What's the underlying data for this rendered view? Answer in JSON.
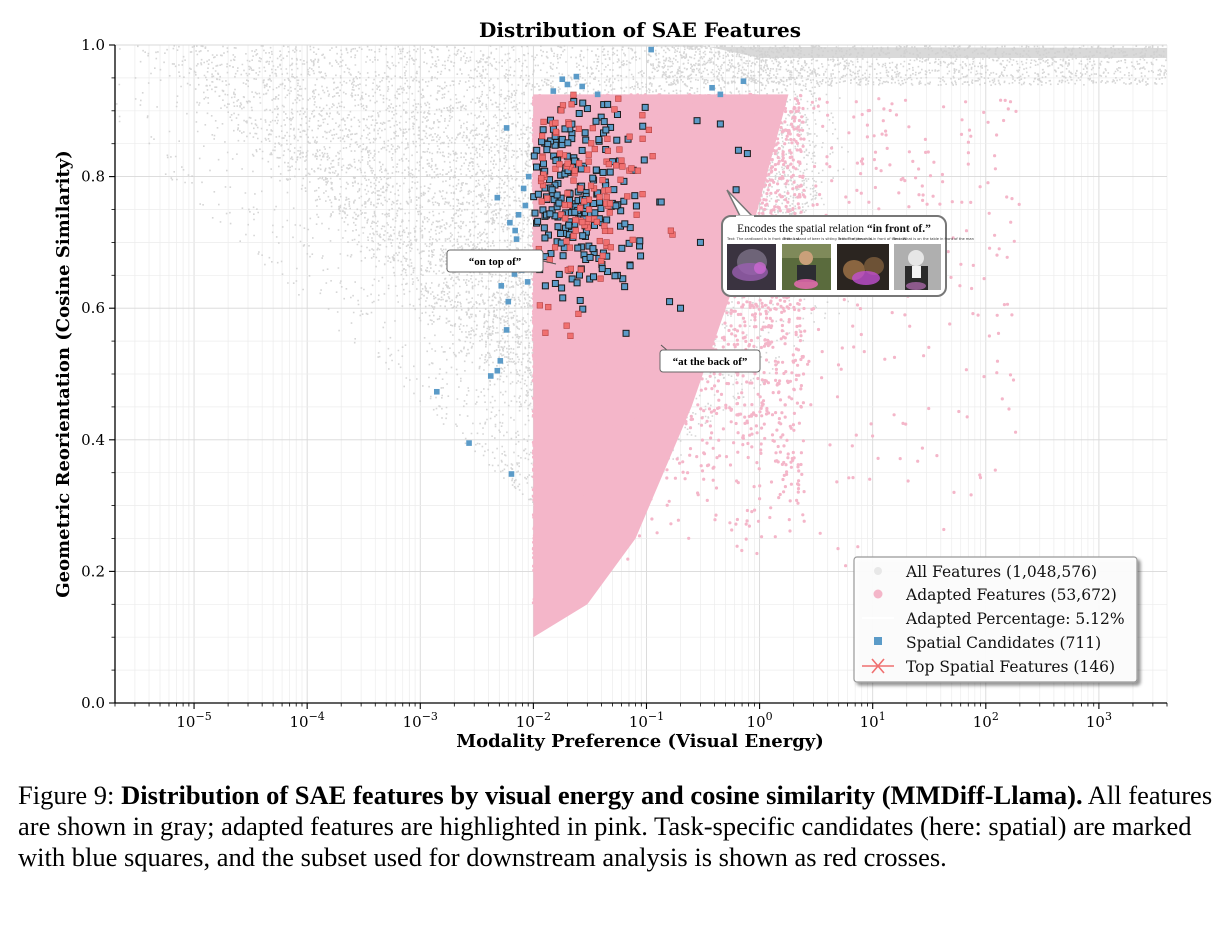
{
  "chart_data": {
    "type": "scatter",
    "title": "Distribution of SAE Features",
    "xlabel": "Modality Preference (Visual Energy)",
    "ylabel": "Geometric Reorientation (Cosine Similarity)",
    "x_scale": "log",
    "xlim": [
      2e-06,
      4000
    ],
    "ylim": [
      0.0,
      1.0
    ],
    "x_ticks": [
      {
        "value": 1e-05,
        "base": "10",
        "exp": "−5"
      },
      {
        "value": 0.0001,
        "base": "10",
        "exp": "−4"
      },
      {
        "value": 0.001,
        "base": "10",
        "exp": "−3"
      },
      {
        "value": 0.01,
        "base": "10",
        "exp": "−2"
      },
      {
        "value": 0.1,
        "base": "10",
        "exp": "−1"
      },
      {
        "value": 1,
        "base": "10",
        "exp": "0"
      },
      {
        "value": 10,
        "base": "10",
        "exp": "1"
      },
      {
        "value": 100,
        "base": "10",
        "exp": "2"
      },
      {
        "value": 1000,
        "base": "10",
        "exp": "3"
      }
    ],
    "y_ticks": [
      {
        "value": 0.0,
        "label": "0.0"
      },
      {
        "value": 0.2,
        "label": "0.2"
      },
      {
        "value": 0.4,
        "label": "0.4"
      },
      {
        "value": 0.6,
        "label": "0.6"
      },
      {
        "value": 0.8,
        "label": "0.8"
      },
      {
        "value": 1.0,
        "label": "1.0"
      }
    ],
    "grid": true,
    "legend_position": "bottom-right",
    "adapted_region": {
      "x_min": 0.01,
      "y_max": 0.925
    },
    "series": [
      {
        "name": "All Features (1,048,576)",
        "marker": "circle",
        "color": "#cfcfcf"
      },
      {
        "name": "Adapted Features (53,672)",
        "marker": "circle",
        "color": "#f4b6c9"
      },
      {
        "name": "Adapted Percentage: 5.12%",
        "marker": "none",
        "color": "#ffffff"
      },
      {
        "name": "Spatial Candidates (711)",
        "marker": "square",
        "color": "#5b9bc8"
      },
      {
        "name": "Top Spatial Features (146)",
        "marker": "x",
        "color": "#f07070"
      }
    ],
    "spatial_candidates_outside_region": [
      {
        "x": 0.0014,
        "y": 0.473
      },
      {
        "x": 0.0027,
        "y": 0.395
      },
      {
        "x": 0.0064,
        "y": 0.348
      },
      {
        "x": 0.0042,
        "y": 0.497
      },
      {
        "x": 0.0048,
        "y": 0.505
      },
      {
        "x": 0.0051,
        "y": 0.52
      },
      {
        "x": 0.0058,
        "y": 0.567
      },
      {
        "x": 0.006,
        "y": 0.61
      },
      {
        "x": 0.0052,
        "y": 0.634
      },
      {
        "x": 0.0068,
        "y": 0.652
      },
      {
        "x": 0.0071,
        "y": 0.705
      },
      {
        "x": 0.0062,
        "y": 0.73
      },
      {
        "x": 0.0074,
        "y": 0.742
      },
      {
        "x": 0.0069,
        "y": 0.718
      },
      {
        "x": 0.0048,
        "y": 0.768
      },
      {
        "x": 0.0082,
        "y": 0.782
      },
      {
        "x": 0.0058,
        "y": 0.874
      },
      {
        "x": 0.0091,
        "y": 0.8
      },
      {
        "x": 0.0085,
        "y": 0.756
      },
      {
        "x": 0.0079,
        "y": 0.658
      },
      {
        "x": 0.0089,
        "y": 0.64
      },
      {
        "x": 0.015,
        "y": 0.93
      },
      {
        "x": 0.018,
        "y": 0.948
      },
      {
        "x": 0.02,
        "y": 0.94
      },
      {
        "x": 0.024,
        "y": 0.952
      },
      {
        "x": 0.027,
        "y": 0.937
      },
      {
        "x": 0.037,
        "y": 0.925
      },
      {
        "x": 0.11,
        "y": 0.993
      },
      {
        "x": 0.38,
        "y": 0.935
      },
      {
        "x": 0.72,
        "y": 0.945
      },
      {
        "x": 0.45,
        "y": 0.925
      }
    ],
    "annotations": [
      {
        "text": "“on top of”",
        "x": 0.006,
        "y": 0.67
      },
      {
        "text": "“at the back of”",
        "x": 0.13,
        "y": 0.53
      },
      {
        "text_prefix": "Encodes the spatial relation ",
        "text_bold": "“in front of.”",
        "x": 0.62,
        "y": 0.76
      }
    ],
    "callout_image_captions": [
      "Text: The cardboard is in front of the cat.",
      "Text: A stand of beer is sitting in front of the child.",
      "Text: The person is in front of the cats.",
      "Text: What is on the table in front of the man"
    ]
  },
  "caption": {
    "label": "Figure 9: ",
    "bold": "Distribution of SAE features by visual energy and cosine similarity (MMDiff-Llama).",
    "text": " All features are shown in gray; adapted features are highlighted in pink. Task-specific candidates (here: spatial) are marked with blue squares, and the subset used for downstream analysis is shown as red crosses."
  }
}
